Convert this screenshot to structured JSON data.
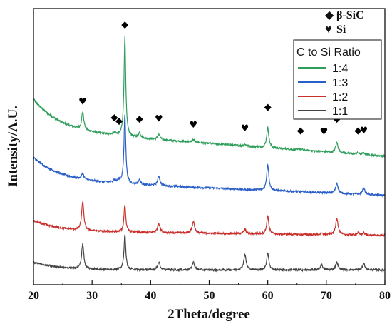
{
  "chart_data": {
    "type": "line",
    "xlabel": "2Theta/degree",
    "ylabel": "Intensity/A.U.",
    "xlim": [
      20,
      80
    ],
    "xticks": [
      20,
      30,
      40,
      50,
      60,
      70,
      80
    ],
    "y_ticks_shown": false,
    "grid": false,
    "legend": {
      "title": "C to Si Ratio",
      "placement": "top-right",
      "entries": [
        "1:4",
        "1:3",
        "1:2",
        "1:1"
      ]
    },
    "phase_key": [
      {
        "symbol": "◆",
        "label": "β-SiC"
      },
      {
        "symbol": "♥",
        "label": "Si"
      }
    ],
    "series": [
      {
        "name": "1:4",
        "color": "#2e9e5b",
        "baseline": 3.3,
        "slope": -0.6,
        "decay": 0.75,
        "peaks": [
          {
            "x": 28.4,
            "h": 0.42,
            "w": 0.22
          },
          {
            "x": 33.8,
            "h": 0.05,
            "w": 0.4
          },
          {
            "x": 35.6,
            "h": 2.35,
            "w": 0.18
          },
          {
            "x": 38.1,
            "h": 0.12,
            "w": 0.22
          },
          {
            "x": 41.4,
            "h": 0.12,
            "w": 0.25
          },
          {
            "x": 47.3,
            "h": 0.06,
            "w": 0.25
          },
          {
            "x": 56.1,
            "h": 0.04,
            "w": 0.25
          },
          {
            "x": 60.0,
            "h": 0.48,
            "w": 0.22
          },
          {
            "x": 65.6,
            "h": 0.03,
            "w": 0.25
          },
          {
            "x": 71.8,
            "h": 0.24,
            "w": 0.25
          },
          {
            "x": 75.4,
            "h": 0.03,
            "w": 0.25
          },
          {
            "x": 76.4,
            "h": 0.04,
            "w": 0.25
          }
        ]
      },
      {
        "name": "1:3",
        "color": "#2a5fc9",
        "baseline": 2.12,
        "slope": -0.35,
        "decay": 0.55,
        "peaks": [
          {
            "x": 28.4,
            "h": 0.14,
            "w": 0.22
          },
          {
            "x": 33.8,
            "h": 0.06,
            "w": 0.3
          },
          {
            "x": 34.6,
            "h": 0.06,
            "w": 0.3
          },
          {
            "x": 35.6,
            "h": 1.65,
            "w": 0.18
          },
          {
            "x": 38.1,
            "h": 0.12,
            "w": 0.22
          },
          {
            "x": 41.4,
            "h": 0.22,
            "w": 0.25
          },
          {
            "x": 60.0,
            "h": 0.62,
            "w": 0.22
          },
          {
            "x": 71.8,
            "h": 0.24,
            "w": 0.25
          },
          {
            "x": 76.4,
            "h": 0.15,
            "w": 0.25
          }
        ]
      },
      {
        "name": "1:2",
        "color": "#c9302c",
        "baseline": 0.92,
        "slope": -0.1,
        "decay": 0.25,
        "peaks": [
          {
            "x": 28.4,
            "h": 0.68,
            "w": 0.22
          },
          {
            "x": 35.6,
            "h": 0.65,
            "w": 0.18
          },
          {
            "x": 41.4,
            "h": 0.22,
            "w": 0.25
          },
          {
            "x": 47.3,
            "h": 0.28,
            "w": 0.25
          },
          {
            "x": 56.1,
            "h": 0.1,
            "w": 0.25
          },
          {
            "x": 60.0,
            "h": 0.42,
            "w": 0.22
          },
          {
            "x": 69.2,
            "h": 0.03,
            "w": 0.25
          },
          {
            "x": 71.8,
            "h": 0.4,
            "w": 0.25
          },
          {
            "x": 75.4,
            "h": 0.05,
            "w": 0.25
          },
          {
            "x": 76.4,
            "h": 0.05,
            "w": 0.25
          }
        ]
      },
      {
        "name": "1:1",
        "color": "#444444",
        "baseline": 0.0,
        "slope": 0.0,
        "decay": 0.18,
        "peaks": [
          {
            "x": 28.4,
            "h": 0.6,
            "w": 0.22
          },
          {
            "x": 35.6,
            "h": 0.85,
            "w": 0.18
          },
          {
            "x": 41.4,
            "h": 0.18,
            "w": 0.25
          },
          {
            "x": 47.3,
            "h": 0.18,
            "w": 0.25
          },
          {
            "x": 56.1,
            "h": 0.36,
            "w": 0.25
          },
          {
            "x": 60.0,
            "h": 0.4,
            "w": 0.22
          },
          {
            "x": 69.2,
            "h": 0.12,
            "w": 0.25
          },
          {
            "x": 71.8,
            "h": 0.18,
            "w": 0.25
          },
          {
            "x": 76.4,
            "h": 0.15,
            "w": 0.25
          }
        ]
      }
    ],
    "peak_markers": [
      {
        "x": 28.4,
        "phase": "Si",
        "symbol": "♥",
        "y": 3.92
      },
      {
        "x": 33.8,
        "phase": "β-SiC",
        "symbol": "◆",
        "y": 3.55
      },
      {
        "x": 34.6,
        "phase": "β-SiC",
        "symbol": "◆",
        "y": 3.47
      },
      {
        "x": 35.6,
        "phase": "β-SiC",
        "symbol": "◆",
        "y": 5.75
      },
      {
        "x": 38.1,
        "phase": "β-SiC",
        "symbol": "◆",
        "y": 3.52
      },
      {
        "x": 41.4,
        "phase": "Si",
        "symbol": "♥",
        "y": 3.52
      },
      {
        "x": 47.3,
        "phase": "Si",
        "symbol": "♥",
        "y": 3.37
      },
      {
        "x": 56.1,
        "phase": "Si",
        "symbol": "♥",
        "y": 3.29
      },
      {
        "x": 60.0,
        "phase": "β-SiC",
        "symbol": "◆",
        "y": 3.8
      },
      {
        "x": 65.6,
        "phase": "β-SiC",
        "symbol": "◆",
        "y": 3.24
      },
      {
        "x": 69.6,
        "phase": "Si",
        "symbol": "♥",
        "y": 3.21
      },
      {
        "x": 71.8,
        "phase": "β-SiC",
        "symbol": "◆",
        "y": 3.52
      },
      {
        "x": 75.4,
        "phase": "β-SiC",
        "symbol": "◆",
        "y": 3.24
      },
      {
        "x": 76.4,
        "phase": "Si",
        "symbol": "♥",
        "y": 3.24
      }
    ],
    "ylim": [
      -0.35,
      6.2
    ]
  }
}
